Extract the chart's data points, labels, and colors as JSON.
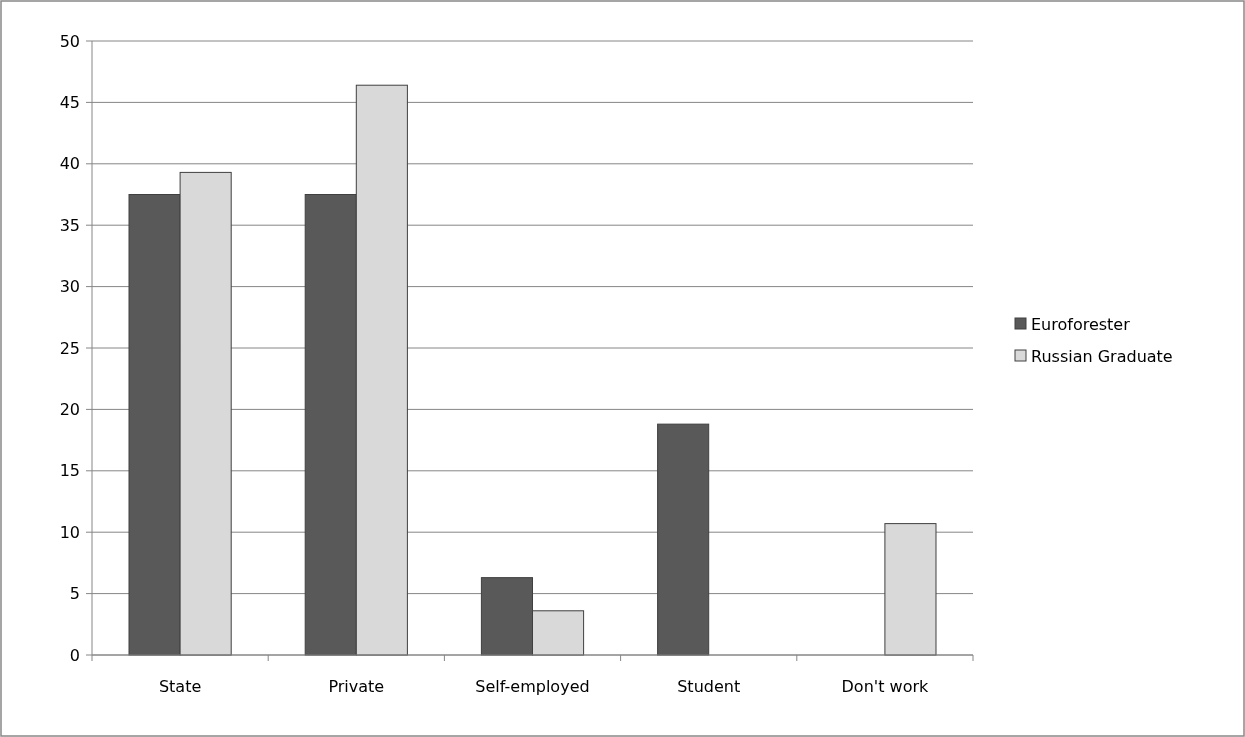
{
  "chart_data": {
    "type": "bar",
    "categories": [
      "State",
      "Private",
      "Self-employed",
      "Student",
      "Don't work"
    ],
    "series": [
      {
        "name": "Euroforester",
        "color": "#595959",
        "values": [
          37.5,
          37.5,
          6.3,
          18.8,
          0
        ]
      },
      {
        "name": "Russian Graduate",
        "color": "#d9d9d9",
        "values": [
          39.3,
          46.4,
          3.6,
          0,
          10.7
        ]
      }
    ],
    "ylim": [
      0,
      50
    ],
    "yticks": [
      0,
      5,
      10,
      15,
      20,
      25,
      30,
      35,
      40,
      45,
      50
    ],
    "grid": "y",
    "legend": "right"
  }
}
